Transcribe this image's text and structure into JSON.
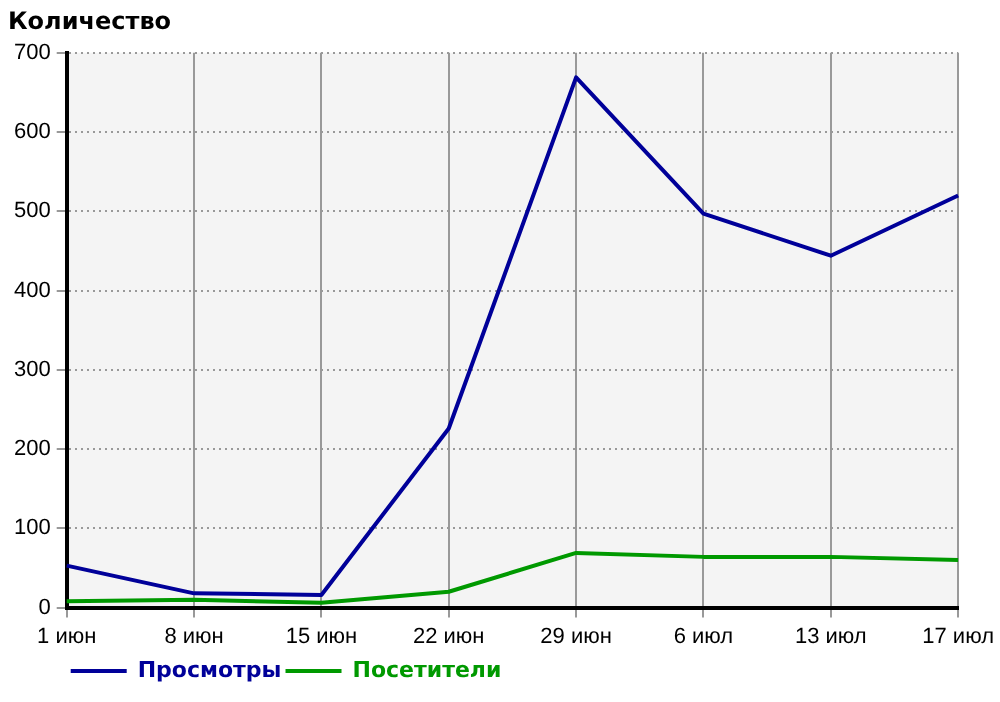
{
  "chart_data": {
    "type": "line",
    "title": "Количество",
    "categories": [
      "1 июн",
      "8 июн",
      "15 июн",
      "22 июн",
      "29 июн",
      "6 июл",
      "13 июл",
      "17 июл"
    ],
    "series": [
      {
        "name": "Просмотры",
        "color": "#000099",
        "values": [
          53,
          18,
          16,
          226,
          669,
          497,
          444,
          520
        ]
      },
      {
        "name": "Посетители",
        "color": "#009900",
        "values": [
          8,
          10,
          6,
          20,
          69,
          64,
          64,
          60
        ]
      }
    ],
    "ylim": [
      0,
      700
    ],
    "yticks": [
      0,
      100,
      200,
      300,
      400,
      500,
      600,
      700
    ],
    "grid": true,
    "legend": "bottom left",
    "marker": "none",
    "line_style": "solid"
  }
}
